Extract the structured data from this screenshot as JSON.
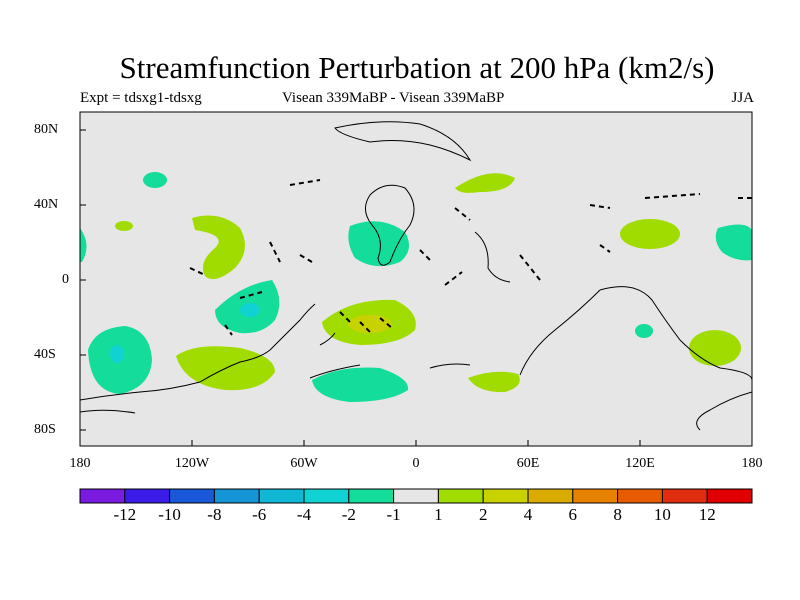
{
  "title": "Streamfunction Perturbation at 200 hPa (km2/s)",
  "subtitle_left": "Expt = tdsxg1-tdsxg",
  "subtitle_center": "Visean 339MaBP - Visean 339MaBP",
  "subtitle_right": "JJA",
  "lat_ticks": [
    "80N",
    "40N",
    "0",
    "40S",
    "80S"
  ],
  "lon_ticks": [
    "180",
    "120W",
    "60W",
    "0",
    "60E",
    "120E",
    "180"
  ],
  "colorbar": {
    "colors": [
      "#7a1ae0",
      "#3a1be8",
      "#1858d9",
      "#1595d6",
      "#10b8d6",
      "#10d2d2",
      "#14dc9a",
      "#e6e6e6",
      "#a0dc00",
      "#c8d200",
      "#d9aa00",
      "#e68200",
      "#e65a00",
      "#e02d10",
      "#e00000"
    ],
    "labels": [
      "-12",
      "-10",
      "-8",
      "-6",
      "-4",
      "-2",
      "-1",
      "1",
      "2",
      "4",
      "6",
      "8",
      "10",
      "12"
    ]
  }
}
